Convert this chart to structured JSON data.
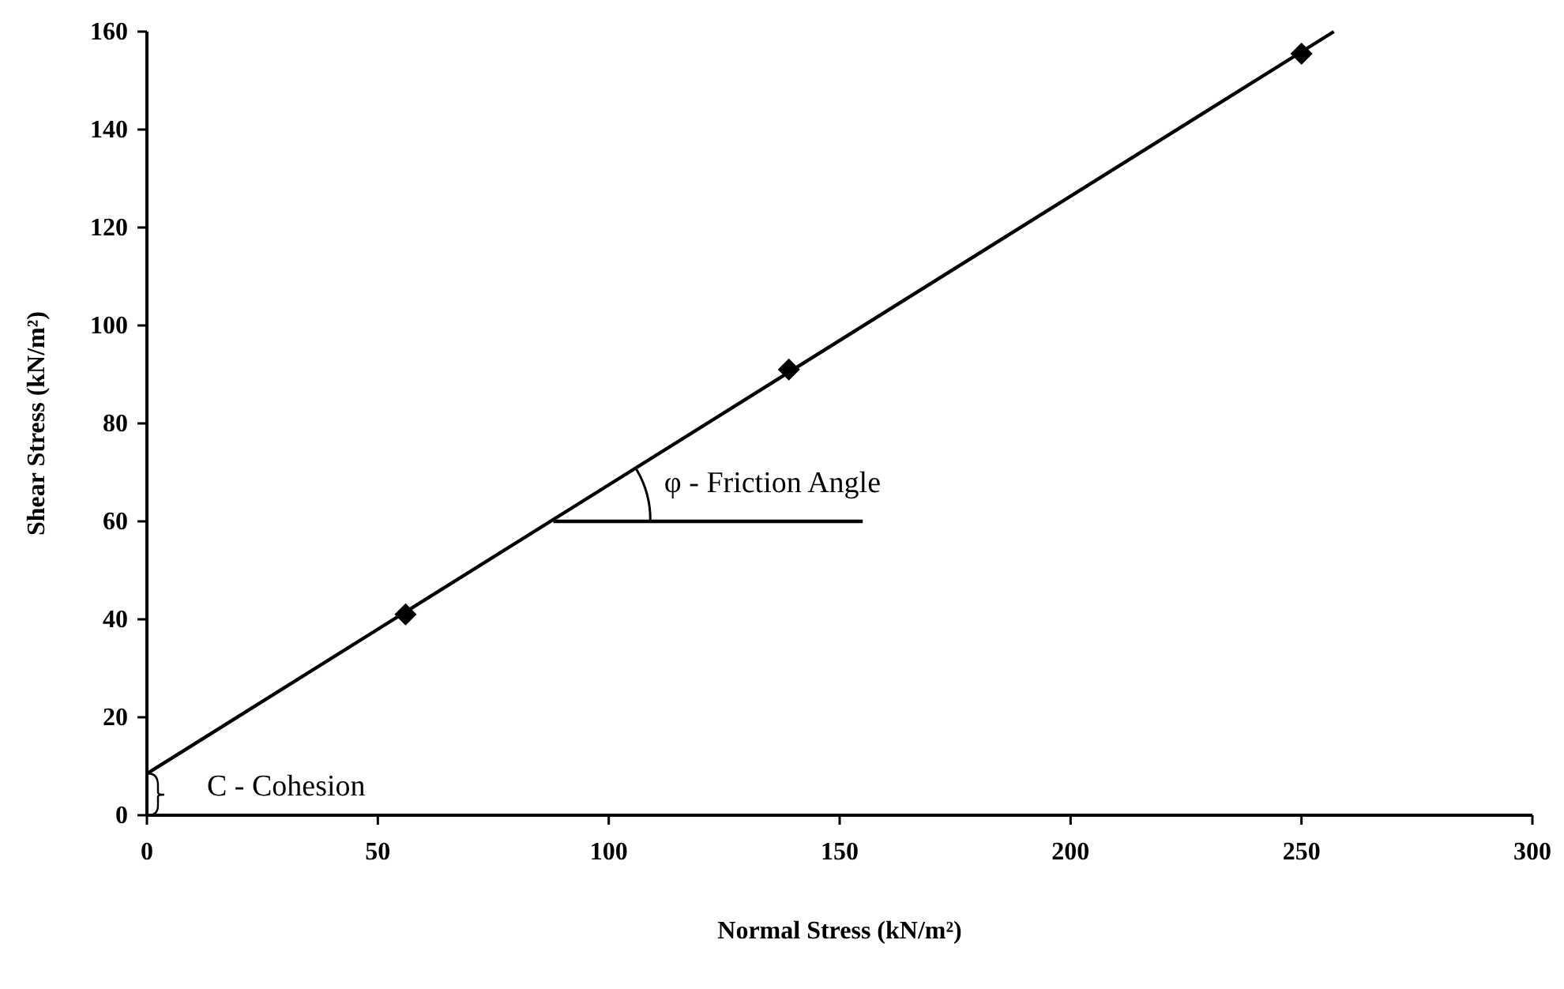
{
  "chart_data": {
    "type": "scatter",
    "xlabel": "Normal Stress (kN/m²)",
    "ylabel": "Shear Stress (kN/m²)",
    "xlim": [
      0,
      300
    ],
    "xticks": [
      0,
      50,
      100,
      150,
      200,
      250,
      300
    ],
    "ylim": [
      0,
      160
    ],
    "yticks": [
      0,
      20,
      40,
      60,
      80,
      100,
      120,
      140,
      160
    ],
    "marker": "diamond",
    "series": [
      {
        "color": "#000000",
        "x": [
          56,
          139,
          250
        ],
        "values": [
          41,
          91,
          155.5
        ]
      },
      {
        "type": "line",
        "color": "#000000",
        "x": [
          0,
          257
        ],
        "values": [
          8.5,
          160
        ],
        "marker": "none",
        "line_style": "solid"
      },
      {
        "type": "line",
        "color": "#000000",
        "x": [
          88,
          155
        ],
        "values": [
          60,
          60
        ],
        "marker": "none",
        "line_style": "solid"
      }
    ],
    "annotations": [
      "φ - Friction Angle",
      "C - Cohesion"
    ]
  }
}
